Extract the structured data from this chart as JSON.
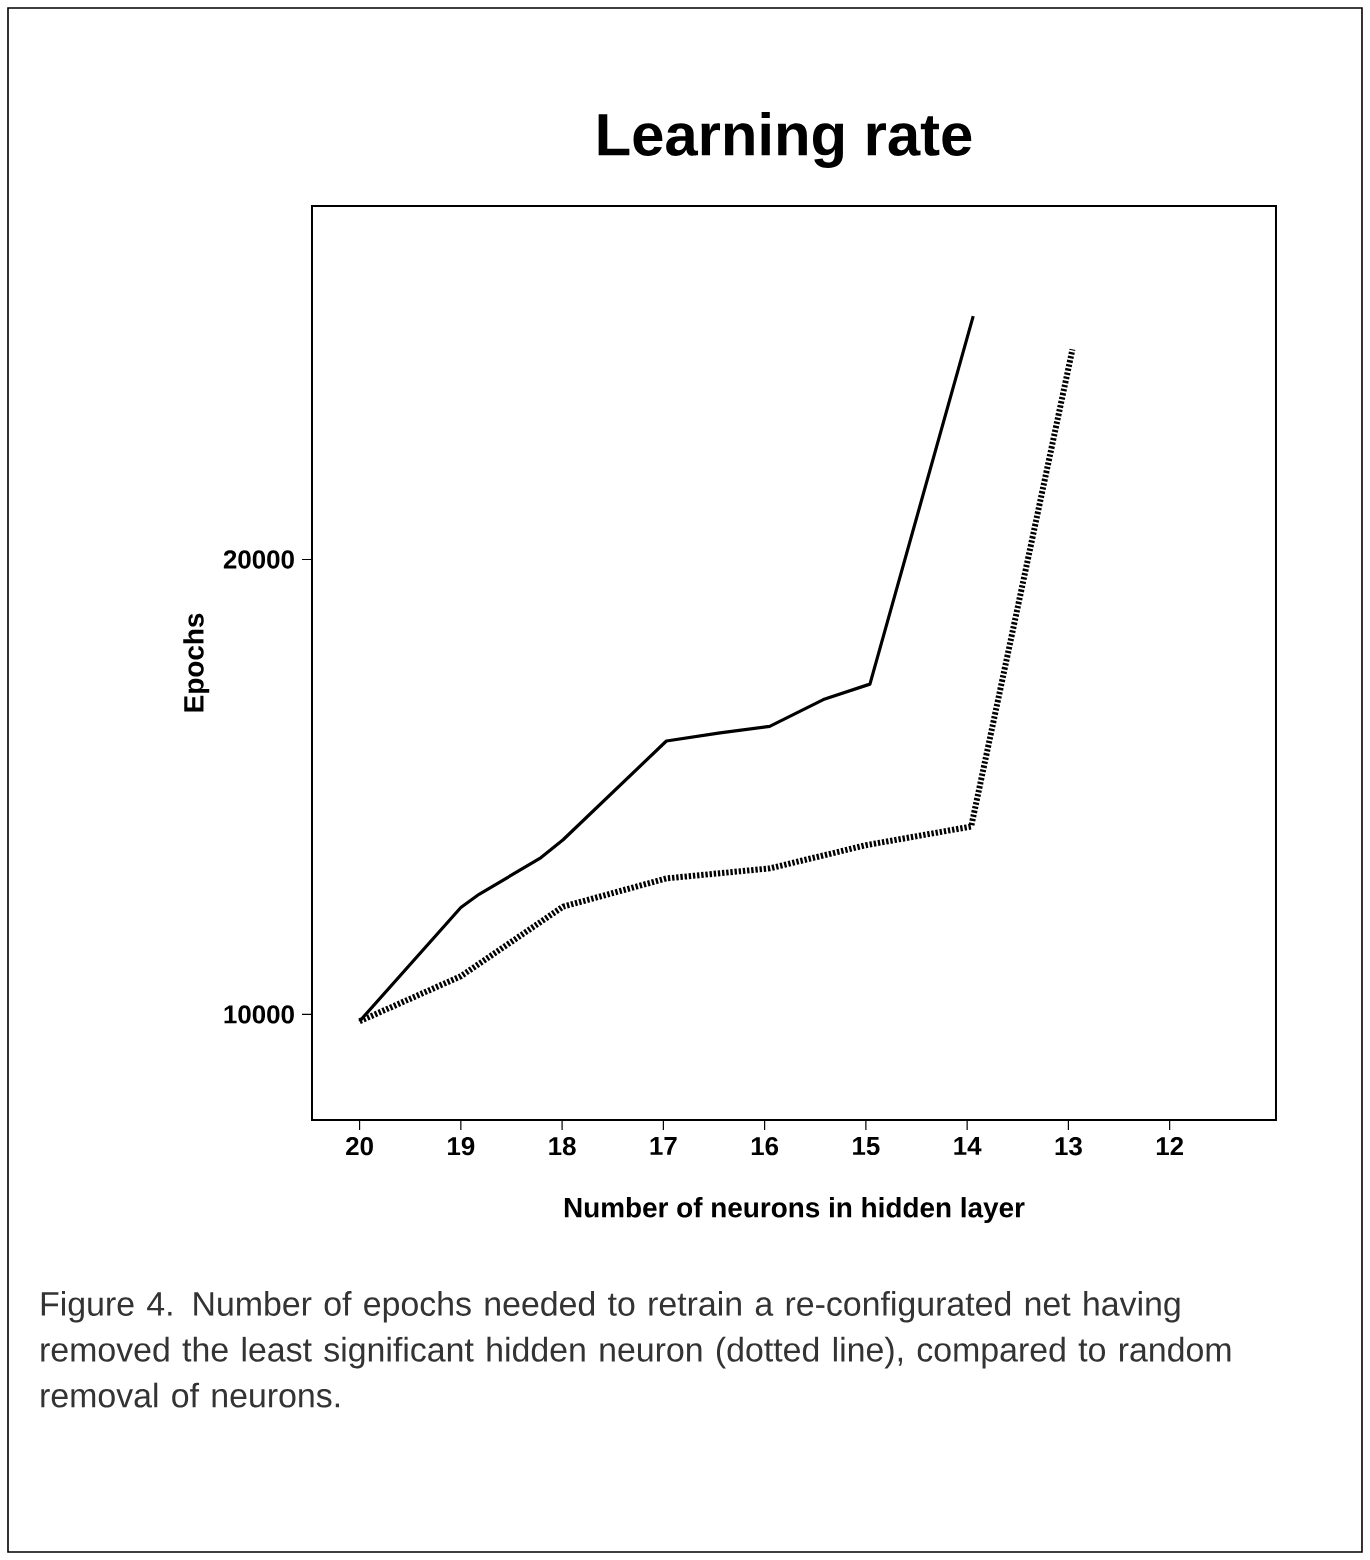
{
  "chart_data": {
    "type": "line",
    "title": "Learning rate",
    "xlabel": "Number of neurons in hidden layer",
    "ylabel": "Epochs",
    "xlim": [
      20.47,
      10.95
    ],
    "xticks": [
      20,
      19,
      18,
      17,
      16,
      15,
      14,
      13,
      12
    ],
    "ylim": [
      7680,
      27770
    ],
    "yticks": [
      10000,
      20000
    ],
    "series": [
      {
        "color": "#000000",
        "line_style": "solid",
        "x": [
          20,
          19,
          18.82,
          18.22,
          17.99,
          16.97,
          16.44,
          15.95,
          15.42,
          14.96,
          13.94
        ],
        "values": [
          9850,
          12350,
          12640,
          13430,
          13840,
          16010,
          16190,
          16330,
          16920,
          17260,
          25350
        ]
      },
      {
        "color": "#000000",
        "line_style": "dotted",
        "x": [
          20,
          19,
          17.99,
          16.97,
          15.95,
          15,
          13.96,
          12.96
        ],
        "values": [
          9850,
          10840,
          12370,
          12990,
          13210,
          13720,
          14130,
          24620
        ]
      }
    ],
    "annotations": [
      "Figure 4. Number of epochs needed to retrain a re-configurated net having removed the least significant hidden neuron (dotted line), compared to random removal of neurons."
    ]
  }
}
